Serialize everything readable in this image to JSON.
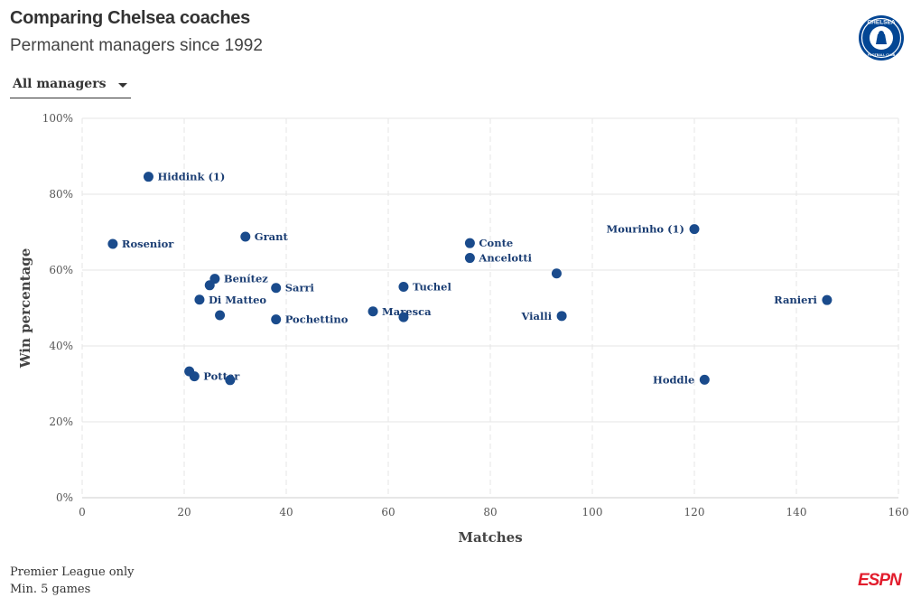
{
  "header": {
    "title": "Comparing Chelsea coaches",
    "subtitle": "Permanent managers since 1992"
  },
  "logo": {
    "icon": "chelsea-crest-icon",
    "text": "CHELSEA",
    "subtext": "FOOTBALL CLUB",
    "colors": {
      "primary": "#034694",
      "accent": "#ffffff"
    }
  },
  "filter": {
    "selected": "All managers"
  },
  "footer": {
    "note1": "Premier League only",
    "note2": "Min. 5 games",
    "brand": "ESPN",
    "brand_color": "#e21d2d"
  },
  "chart_data": {
    "type": "scatter",
    "xlabel": "Matches",
    "ylabel": "Win percentage",
    "xlim": [
      0,
      160
    ],
    "ylim": [
      0,
      100
    ],
    "xticks": [
      0,
      20,
      40,
      60,
      80,
      100,
      120,
      140,
      160
    ],
    "yticks": [
      0,
      20,
      40,
      60,
      80,
      100
    ],
    "ytick_suffix": "%",
    "grid": true,
    "point_color": "#1a4b8c",
    "points": [
      {
        "x": 13,
        "y": 84.6,
        "label": "Hiddink (1)",
        "label_pos": "right"
      },
      {
        "x": 6,
        "y": 66.9,
        "label": "Rosenior",
        "label_pos": "right"
      },
      {
        "x": 32,
        "y": 68.8,
        "label": "Grant",
        "label_pos": "right"
      },
      {
        "x": 26,
        "y": 57.7,
        "label": "Benítez",
        "label_pos": "right"
      },
      {
        "x": 25,
        "y": 56.0,
        "label": "",
        "label_pos": "right"
      },
      {
        "x": 23,
        "y": 52.2,
        "label": "Di Matteo",
        "label_pos": "right"
      },
      {
        "x": 27,
        "y": 48.1,
        "label": "",
        "label_pos": "right"
      },
      {
        "x": 38,
        "y": 55.3,
        "label": "Sarri",
        "label_pos": "right"
      },
      {
        "x": 38,
        "y": 47.0,
        "label": "Pochettino",
        "label_pos": "right"
      },
      {
        "x": 21,
        "y": 33.3,
        "label": "",
        "label_pos": "right"
      },
      {
        "x": 22,
        "y": 32.0,
        "label": "Potter",
        "label_pos": "right"
      },
      {
        "x": 29,
        "y": 31.0,
        "label": "",
        "label_pos": "right"
      },
      {
        "x": 57,
        "y": 49.1,
        "label": "Maresca",
        "label_pos": "right"
      },
      {
        "x": 63,
        "y": 47.6,
        "label": "",
        "label_pos": "right"
      },
      {
        "x": 63,
        "y": 55.6,
        "label": "Tuchel",
        "label_pos": "right"
      },
      {
        "x": 76,
        "y": 67.1,
        "label": "Conte",
        "label_pos": "right"
      },
      {
        "x": 76,
        "y": 63.2,
        "label": "Ancelotti",
        "label_pos": "right"
      },
      {
        "x": 93,
        "y": 59.1,
        "label": "",
        "label_pos": "right"
      },
      {
        "x": 94,
        "y": 47.9,
        "label": "Vialli",
        "label_pos": "left"
      },
      {
        "x": 120,
        "y": 70.8,
        "label": "Mourinho (1)",
        "label_pos": "left"
      },
      {
        "x": 122,
        "y": 31.1,
        "label": "Hoddle",
        "label_pos": "left"
      },
      {
        "x": 146,
        "y": 52.1,
        "label": "Ranieri",
        "label_pos": "left"
      }
    ]
  }
}
